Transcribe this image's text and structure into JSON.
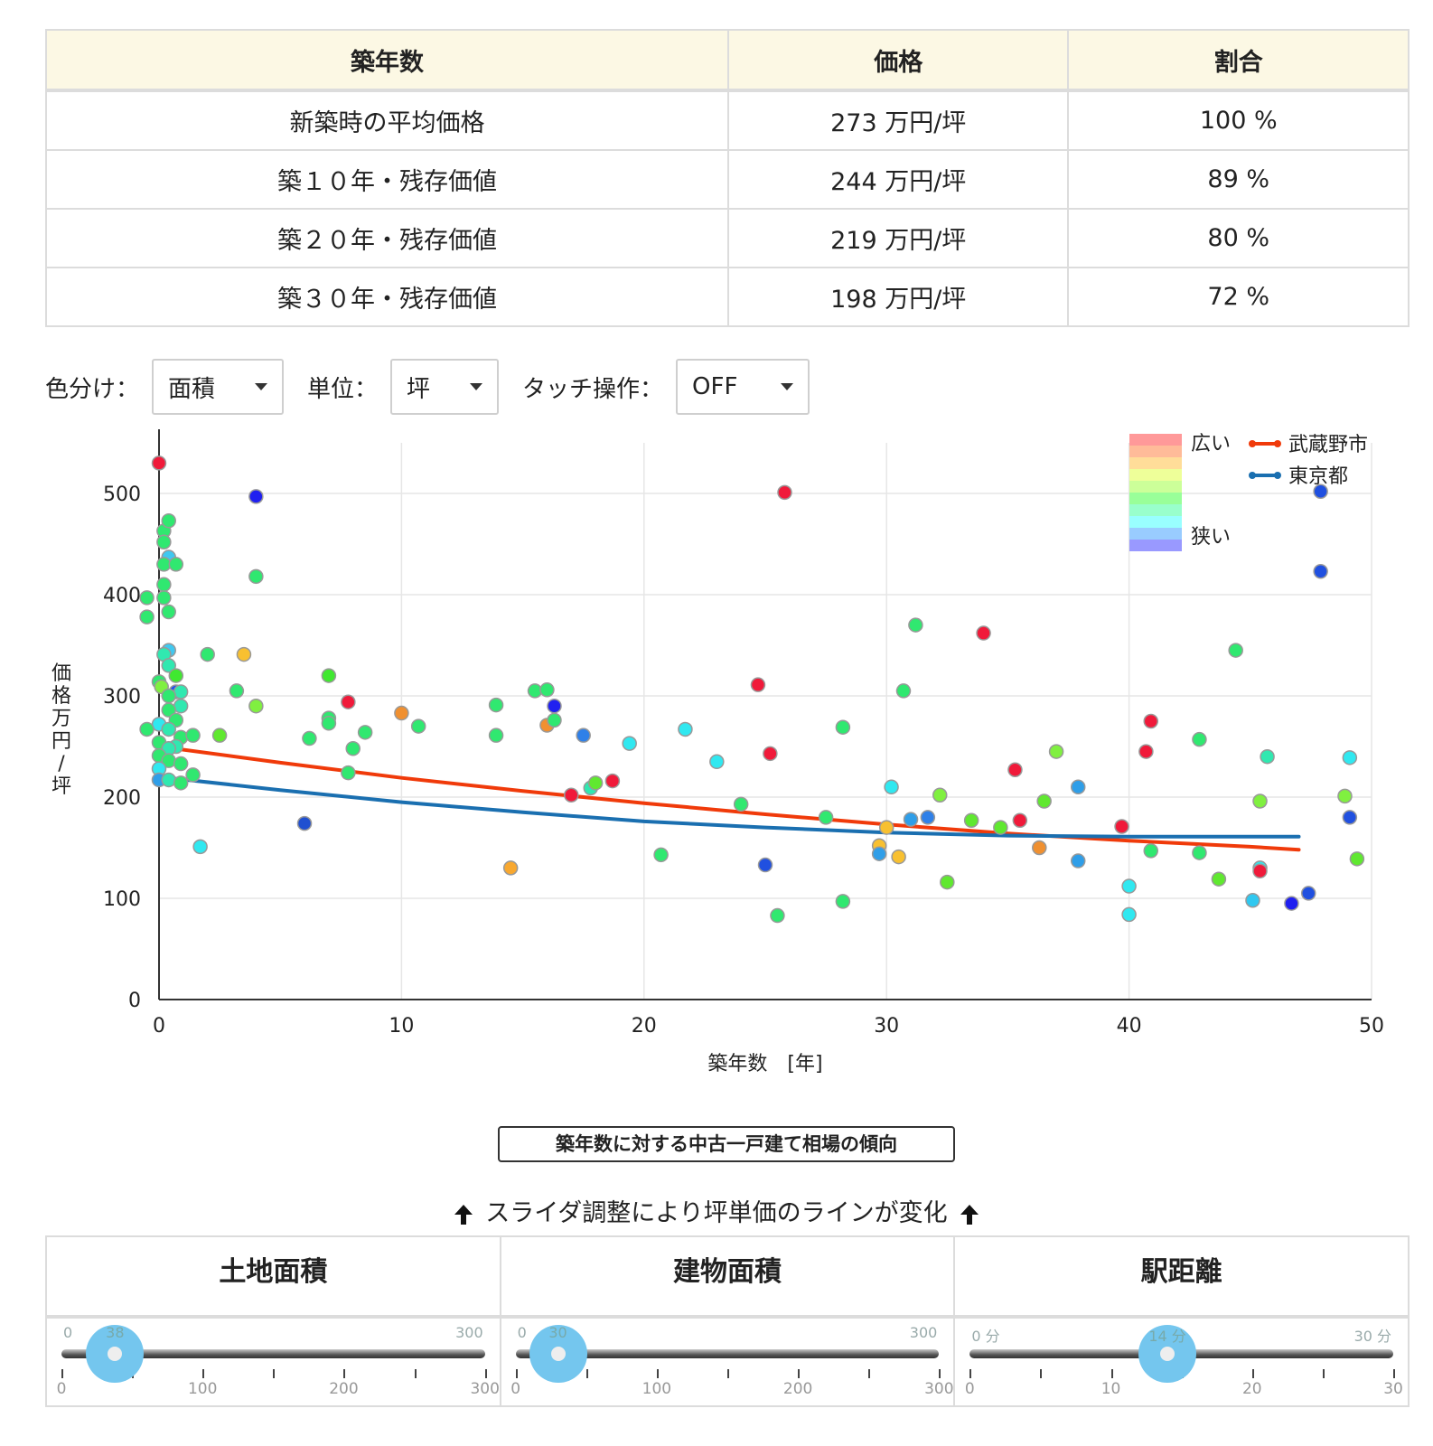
{
  "table": {
    "headers": [
      "築年数",
      "価格",
      "割合"
    ],
    "rows": [
      [
        "新築時の平均価格",
        "273 万円/坪",
        "100 %"
      ],
      [
        "築１０年・残存価値",
        "244 万円/坪",
        "89 %"
      ],
      [
        "築２０年・残存価値",
        "219 万円/坪",
        "80 %"
      ],
      [
        "築３０年・残存価値",
        "198 万円/坪",
        "72 %"
      ]
    ]
  },
  "controls": {
    "color_label": "色分け：",
    "color_value": "面積",
    "unit_label": "単位：",
    "unit_value": "坪",
    "touch_label": "タッチ操作：",
    "touch_value": "OFF"
  },
  "chart_data": {
    "type": "scatter",
    "xlabel": "築年数　[年]",
    "ylabel": "価格 万円/坪",
    "xlim": [
      0,
      50
    ],
    "ylim": [
      0,
      550
    ],
    "x_ticks": [
      0,
      10,
      20,
      30,
      40,
      50
    ],
    "y_ticks": [
      0,
      100,
      200,
      300,
      400,
      500
    ],
    "grid": true,
    "color_scale": {
      "high_label": "広い",
      "low_label": "狭い"
    },
    "legend_position": "top-right",
    "series": [
      {
        "name": "武蔵野市",
        "color": "#f03a0a",
        "type": "line",
        "x": [
          0,
          5,
          10,
          15,
          20,
          25,
          30,
          35,
          40,
          45,
          47
        ],
        "y": [
          250,
          234,
          219,
          206,
          194,
          183,
          173,
          164,
          157,
          151,
          148
        ]
      },
      {
        "name": "東京都",
        "color": "#1a6fb0",
        "type": "line",
        "x": [
          0,
          5,
          10,
          15,
          20,
          25,
          30,
          35,
          40,
          45,
          47
        ],
        "y": [
          220,
          207,
          195,
          185,
          176,
          170,
          165,
          162,
          161,
          161,
          161
        ]
      }
    ],
    "points": [
      {
        "x": 0,
        "y": 530,
        "c": "#f01a3a"
      },
      {
        "x": 0.2,
        "y": 463,
        "c": "#30e870"
      },
      {
        "x": 0.4,
        "y": 473,
        "c": "#30e870"
      },
      {
        "x": 0.2,
        "y": 452,
        "c": "#30e870"
      },
      {
        "x": 0.4,
        "y": 437,
        "c": "#40c8f0"
      },
      {
        "x": 0.2,
        "y": 430,
        "c": "#30e870"
      },
      {
        "x": 0.7,
        "y": 430,
        "c": "#30e870"
      },
      {
        "x": 0.2,
        "y": 410,
        "c": "#30e870"
      },
      {
        "x": 0.2,
        "y": 397,
        "c": "#30e870"
      },
      {
        "x": -0.5,
        "y": 397,
        "c": "#30e870"
      },
      {
        "x": 0.4,
        "y": 383,
        "c": "#30e870"
      },
      {
        "x": -0.5,
        "y": 378,
        "c": "#30e870"
      },
      {
        "x": 0.4,
        "y": 345,
        "c": "#40c8f0"
      },
      {
        "x": 0.2,
        "y": 341,
        "c": "#30e8b0"
      },
      {
        "x": 0.4,
        "y": 330,
        "c": "#30e8b0"
      },
      {
        "x": 0.7,
        "y": 320,
        "c": "#40e830"
      },
      {
        "x": 0,
        "y": 314,
        "c": "#30e870"
      },
      {
        "x": 0.1,
        "y": 309,
        "c": "#80f040"
      },
      {
        "x": 0.7,
        "y": 304,
        "c": "#2050f0"
      },
      {
        "x": 0.9,
        "y": 304,
        "c": "#30e8b0"
      },
      {
        "x": 0.4,
        "y": 300,
        "c": "#30e870"
      },
      {
        "x": 0.9,
        "y": 290,
        "c": "#30e8b0"
      },
      {
        "x": 0.4,
        "y": 286,
        "c": "#30e870"
      },
      {
        "x": 0.7,
        "y": 276,
        "c": "#30e870"
      },
      {
        "x": 0,
        "y": 272,
        "c": "#30e8f0"
      },
      {
        "x": -0.5,
        "y": 267,
        "c": "#30e870"
      },
      {
        "x": 0.4,
        "y": 267,
        "c": "#30e8b0"
      },
      {
        "x": 0.9,
        "y": 259,
        "c": "#30e870"
      },
      {
        "x": 1.4,
        "y": 261,
        "c": "#30e870"
      },
      {
        "x": 0,
        "y": 254,
        "c": "#30e870"
      },
      {
        "x": 0.7,
        "y": 250,
        "c": "#30e8b0"
      },
      {
        "x": 0.4,
        "y": 248,
        "c": "#30e8b0"
      },
      {
        "x": 0,
        "y": 241,
        "c": "#30e870"
      },
      {
        "x": 0.4,
        "y": 236,
        "c": "#30e870"
      },
      {
        "x": 0.9,
        "y": 233,
        "c": "#30e870"
      },
      {
        "x": 0,
        "y": 228,
        "c": "#30e8f0"
      },
      {
        "x": 1.4,
        "y": 222,
        "c": "#30e870"
      },
      {
        "x": 0,
        "y": 217,
        "c": "#2f9ee8"
      },
      {
        "x": 0.4,
        "y": 217,
        "c": "#30e8b0"
      },
      {
        "x": 0.9,
        "y": 214,
        "c": "#30e870"
      },
      {
        "x": 1.7,
        "y": 151,
        "c": "#30e8f0"
      },
      {
        "x": 2,
        "y": 341,
        "c": "#30e870"
      },
      {
        "x": 2.5,
        "y": 261,
        "c": "#60e830"
      },
      {
        "x": 3.2,
        "y": 305,
        "c": "#30e870"
      },
      {
        "x": 3.5,
        "y": 341,
        "c": "#f8c030"
      },
      {
        "x": 4,
        "y": 497,
        "c": "#2020f0"
      },
      {
        "x": 4,
        "y": 418,
        "c": "#30e870"
      },
      {
        "x": 4,
        "y": 290,
        "c": "#80f040"
      },
      {
        "x": 6,
        "y": 174,
        "c": "#2050d0"
      },
      {
        "x": 6.2,
        "y": 258,
        "c": "#30e870"
      },
      {
        "x": 7,
        "y": 320,
        "c": "#40e830"
      },
      {
        "x": 7,
        "y": 278,
        "c": "#30e870"
      },
      {
        "x": 7,
        "y": 273,
        "c": "#30e870"
      },
      {
        "x": 7.8,
        "y": 294,
        "c": "#f01a3a"
      },
      {
        "x": 7.8,
        "y": 224,
        "c": "#30e870"
      },
      {
        "x": 8,
        "y": 248,
        "c": "#30e870"
      },
      {
        "x": 8.5,
        "y": 264,
        "c": "#30e870"
      },
      {
        "x": 10,
        "y": 283,
        "c": "#f09030"
      },
      {
        "x": 10.7,
        "y": 270,
        "c": "#30e870"
      },
      {
        "x": 13.9,
        "y": 291,
        "c": "#30e870"
      },
      {
        "x": 13.9,
        "y": 261,
        "c": "#30e870"
      },
      {
        "x": 14.5,
        "y": 130,
        "c": "#f8a830"
      },
      {
        "x": 15.5,
        "y": 305,
        "c": "#30e870"
      },
      {
        "x": 16,
        "y": 306,
        "c": "#30e870"
      },
      {
        "x": 16,
        "y": 271,
        "c": "#f09030"
      },
      {
        "x": 16.3,
        "y": 290,
        "c": "#2020f0"
      },
      {
        "x": 16.3,
        "y": 276,
        "c": "#30e870"
      },
      {
        "x": 17,
        "y": 202,
        "c": "#f01a3a"
      },
      {
        "x": 17.5,
        "y": 261,
        "c": "#2f80e8"
      },
      {
        "x": 17.8,
        "y": 209,
        "c": "#30e8b0"
      },
      {
        "x": 18,
        "y": 214,
        "c": "#60e830"
      },
      {
        "x": 18.7,
        "y": 216,
        "c": "#f01a3a"
      },
      {
        "x": 19.4,
        "y": 253,
        "c": "#30e8f0"
      },
      {
        "x": 20.7,
        "y": 143,
        "c": "#30e870"
      },
      {
        "x": 21.7,
        "y": 267,
        "c": "#30e8f0"
      },
      {
        "x": 23,
        "y": 235,
        "c": "#30e8f0"
      },
      {
        "x": 24,
        "y": 193,
        "c": "#30e870"
      },
      {
        "x": 24.7,
        "y": 311,
        "c": "#f01a3a"
      },
      {
        "x": 25,
        "y": 133,
        "c": "#2050e0"
      },
      {
        "x": 25.2,
        "y": 243,
        "c": "#f01a3a"
      },
      {
        "x": 25.5,
        "y": 83,
        "c": "#30e870"
      },
      {
        "x": 25.8,
        "y": 501,
        "c": "#f01a3a"
      },
      {
        "x": 27.5,
        "y": 180,
        "c": "#30e870"
      },
      {
        "x": 28.2,
        "y": 269,
        "c": "#30e870"
      },
      {
        "x": 28.2,
        "y": 97,
        "c": "#30e870"
      },
      {
        "x": 29.7,
        "y": 152,
        "c": "#f8c030"
      },
      {
        "x": 29.7,
        "y": 144,
        "c": "#2f9ee8"
      },
      {
        "x": 30,
        "y": 170,
        "c": "#f8c030"
      },
      {
        "x": 30.2,
        "y": 210,
        "c": "#30e8f0"
      },
      {
        "x": 30.5,
        "y": 141,
        "c": "#f8c030"
      },
      {
        "x": 30.7,
        "y": 305,
        "c": "#30e870"
      },
      {
        "x": 31,
        "y": 178,
        "c": "#2f9ee8"
      },
      {
        "x": 31.2,
        "y": 370,
        "c": "#30e870"
      },
      {
        "x": 31.7,
        "y": 180,
        "c": "#2f80e8"
      },
      {
        "x": 32.2,
        "y": 202,
        "c": "#80f040"
      },
      {
        "x": 32.5,
        "y": 116,
        "c": "#60e830"
      },
      {
        "x": 33.5,
        "y": 177,
        "c": "#60e830"
      },
      {
        "x": 34,
        "y": 362,
        "c": "#f01a3a"
      },
      {
        "x": 34.7,
        "y": 170,
        "c": "#60e830"
      },
      {
        "x": 35.3,
        "y": 227,
        "c": "#f01a3a"
      },
      {
        "x": 35.5,
        "y": 177,
        "c": "#f01a3a"
      },
      {
        "x": 36.3,
        "y": 150,
        "c": "#f09030"
      },
      {
        "x": 36.5,
        "y": 196,
        "c": "#60e830"
      },
      {
        "x": 37,
        "y": 245,
        "c": "#80f040"
      },
      {
        "x": 37.9,
        "y": 210,
        "c": "#2f9ee8"
      },
      {
        "x": 37.9,
        "y": 137,
        "c": "#2f9ee8"
      },
      {
        "x": 39.7,
        "y": 171,
        "c": "#f01a3a"
      },
      {
        "x": 40,
        "y": 112,
        "c": "#30e8f0"
      },
      {
        "x": 40,
        "y": 84,
        "c": "#30e8f0"
      },
      {
        "x": 40.7,
        "y": 245,
        "c": "#f01a3a"
      },
      {
        "x": 40.9,
        "y": 275,
        "c": "#f01a3a"
      },
      {
        "x": 40.9,
        "y": 147,
        "c": "#30e870"
      },
      {
        "x": 42.9,
        "y": 145,
        "c": "#30e870"
      },
      {
        "x": 42.9,
        "y": 257,
        "c": "#30e870"
      },
      {
        "x": 43.7,
        "y": 119,
        "c": "#60e830"
      },
      {
        "x": 44.4,
        "y": 345,
        "c": "#30e870"
      },
      {
        "x": 45.1,
        "y": 98,
        "c": "#30c8f0"
      },
      {
        "x": 45.4,
        "y": 130,
        "c": "#30e8f0"
      },
      {
        "x": 45.4,
        "y": 127,
        "c": "#f01a3a"
      },
      {
        "x": 45.4,
        "y": 196,
        "c": "#80f040"
      },
      {
        "x": 45.7,
        "y": 240,
        "c": "#30e8b0"
      },
      {
        "x": 46.7,
        "y": 95,
        "c": "#2020f0"
      },
      {
        "x": 47.4,
        "y": 105,
        "c": "#2050e0"
      },
      {
        "x": 47.9,
        "y": 423,
        "c": "#2050e0"
      },
      {
        "x": 47.9,
        "y": 502,
        "c": "#2050e0"
      },
      {
        "x": 48.9,
        "y": 201,
        "c": "#80f040"
      },
      {
        "x": 49.1,
        "y": 180,
        "c": "#2050e0"
      },
      {
        "x": 49.1,
        "y": 239,
        "c": "#30e8f0"
      },
      {
        "x": 49.4,
        "y": 139,
        "c": "#60e830"
      }
    ]
  },
  "trend_button_label": "築年数に対する中古一戸建て相場の傾向",
  "slider_hint": "スライダ調整により坪単価のラインが変化",
  "sliders": [
    {
      "title": "土地面積",
      "min_label": "0",
      "max_label": "300",
      "value_label": "38",
      "value": 38,
      "max": 300,
      "tick_labels": [
        "0",
        "100",
        "200",
        "300"
      ],
      "tick_values": [
        0,
        100,
        200,
        300
      ],
      "minor_step": 50
    },
    {
      "title": "建物面積",
      "min_label": "0",
      "max_label": "300",
      "value_label": "30",
      "value": 30,
      "max": 300,
      "tick_labels": [
        "0",
        "100",
        "200",
        "300"
      ],
      "tick_values": [
        0,
        100,
        200,
        300
      ],
      "minor_step": 50
    },
    {
      "title": "駅距離",
      "min_label": "0 分",
      "max_label": "30 分",
      "value_label": "14 分",
      "value": 14,
      "max": 30,
      "tick_labels": [
        "0",
        "10",
        "20",
        "30"
      ],
      "tick_values": [
        0,
        10,
        20,
        30
      ],
      "minor_step": 5
    }
  ]
}
